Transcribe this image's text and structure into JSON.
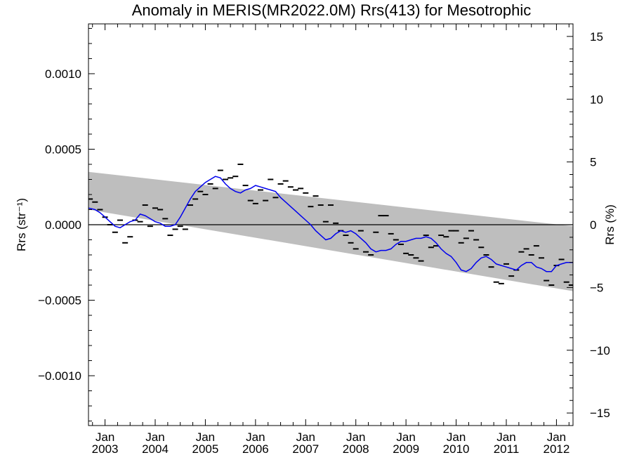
{
  "chart_data": {
    "type": "line",
    "title": "Anomaly in MERIS(MR2022.0M) Rrs(413) for Mesotrophic",
    "ylabel_left": "Rrs (str⁻¹)",
    "ylabel_right": "Rrs (%)",
    "xlim": [
      2002.67,
      2012.33
    ],
    "ylim_left": [
      -0.00133,
      0.00133
    ],
    "ylim_right": [
      -16,
      16
    ],
    "y_ticks_left": [
      {
        "v": 0.001,
        "label": "0.0010"
      },
      {
        "v": 0.0005,
        "label": "0.0005"
      },
      {
        "v": 0.0,
        "label": "0.0000"
      },
      {
        "v": -0.0005,
        "label": "−0.0005"
      },
      {
        "v": -0.001,
        "label": "−0.0010"
      }
    ],
    "y_ticks_right": [
      {
        "v": 15,
        "label": "15"
      },
      {
        "v": 10,
        "label": "10"
      },
      {
        "v": 5,
        "label": "5"
      },
      {
        "v": 0,
        "label": "0"
      },
      {
        "v": -5,
        "label": "−5"
      },
      {
        "v": -10,
        "label": "−10"
      },
      {
        "v": -15,
        "label": "−15"
      }
    ],
    "x_ticks": [
      {
        "x": 2003.0,
        "label": "Jan",
        "year": "2003"
      },
      {
        "x": 2004.0,
        "label": "Jan",
        "year": "2004"
      },
      {
        "x": 2005.0,
        "label": "Jan",
        "year": "2005"
      },
      {
        "x": 2006.0,
        "label": "Jan",
        "year": "2006"
      },
      {
        "x": 2007.0,
        "label": "Jan",
        "year": "2007"
      },
      {
        "x": 2008.0,
        "label": "Jan",
        "year": "2008"
      },
      {
        "x": 2009.0,
        "label": "Jan",
        "year": "2009"
      },
      {
        "x": 2010.0,
        "label": "Jan",
        "year": "2010"
      },
      {
        "x": 2011.0,
        "label": "Jan",
        "year": "2011"
      },
      {
        "x": 2012.0,
        "label": "Jan",
        "year": "2012"
      }
    ],
    "trend_band": {
      "x": [
        2002.67,
        2012.33
      ],
      "upper": [
        0.00035,
        -1e-05
      ],
      "lower": [
        0.0001,
        -0.00044
      ]
    },
    "zero_line": 0,
    "monthly_anomalies": {
      "x": [
        2002.7,
        2002.8,
        2002.9,
        2003.0,
        2003.1,
        2003.2,
        2003.3,
        2003.4,
        2003.5,
        2003.6,
        2003.7,
        2003.8,
        2003.9,
        2004.0,
        2004.1,
        2004.2,
        2004.3,
        2004.4,
        2004.5,
        2004.6,
        2004.7,
        2004.8,
        2004.9,
        2005.0,
        2005.1,
        2005.2,
        2005.3,
        2005.4,
        2005.5,
        2005.6,
        2005.7,
        2005.8,
        2005.9,
        2006.0,
        2006.1,
        2006.2,
        2006.3,
        2006.4,
        2006.5,
        2006.6,
        2006.7,
        2006.8,
        2006.9,
        2007.0,
        2007.1,
        2007.2,
        2007.3,
        2007.4,
        2007.5,
        2007.6,
        2007.7,
        2007.8,
        2007.9,
        2008.0,
        2008.1,
        2008.2,
        2008.3,
        2008.4,
        2008.5,
        2008.6,
        2008.7,
        2008.8,
        2008.9,
        2009.0,
        2009.1,
        2009.2,
        2009.3,
        2009.4,
        2009.5,
        2009.6,
        2009.7,
        2009.8,
        2009.9,
        2010.0,
        2010.1,
        2010.2,
        2010.3,
        2010.4,
        2010.5,
        2010.6,
        2010.7,
        2010.8,
        2010.9,
        2011.0,
        2011.1,
        2011.2,
        2011.3,
        2011.4,
        2011.5,
        2011.6,
        2011.7,
        2011.8,
        2011.9,
        2012.0,
        2012.1,
        2012.2,
        2012.3
      ],
      "y": [
        0.00017,
        0.00015,
        0.0001,
        5e-05,
        0.0,
        -5e-05,
        3e-05,
        -0.00012,
        -8e-05,
        3e-05,
        2e-05,
        0.00013,
        -1e-05,
        0.00011,
        0.0001,
        4e-05,
        -7e-05,
        -3e-05,
        -1e-05,
        -3e-05,
        0.00013,
        0.00017,
        0.00022,
        0.0002,
        0.00027,
        0.00024,
        0.00036,
        0.0003,
        0.00031,
        0.00032,
        0.0004,
        0.00026,
        0.00016,
        0.00014,
        0.00023,
        0.00016,
        0.0003,
        0.00018,
        0.00027,
        0.00029,
        0.00025,
        0.00023,
        0.00024,
        0.00021,
        0.00012,
        0.00019,
        0.00013,
        2e-05,
        0.00013,
        1e-05,
        -4e-05,
        -7e-05,
        -0.00012,
        -0.00016,
        -4e-05,
        -0.00018,
        -0.0002,
        -5e-05,
        6e-05,
        6e-05,
        -6e-05,
        -0.0001,
        -0.00013,
        -0.00019,
        -0.0002,
        -0.00022,
        -0.00024,
        -7e-05,
        -0.00015,
        -0.00014,
        -7e-05,
        -8e-05,
        -4e-05,
        -4e-05,
        -0.00012,
        -9e-05,
        -4e-05,
        -0.0001,
        -0.00015,
        -0.0002,
        -0.00028,
        -0.00038,
        -0.00039,
        -0.00026,
        -0.00034,
        -0.0003,
        -0.00018,
        -0.00016,
        -0.0002,
        -0.00014,
        -0.00022,
        -0.00037,
        -0.0004,
        -0.00027,
        -0.00023,
        -0.00038,
        -0.0004
      ]
    },
    "smoothed_series": {
      "color": "#0000ee",
      "x": [
        2002.67,
        2002.8,
        2002.9,
        2003.0,
        2003.1,
        2003.2,
        2003.3,
        2003.4,
        2003.5,
        2003.6,
        2003.7,
        2003.8,
        2003.9,
        2004.0,
        2004.1,
        2004.2,
        2004.3,
        2004.4,
        2004.5,
        2004.6,
        2004.7,
        2004.8,
        2004.9,
        2005.0,
        2005.1,
        2005.2,
        2005.3,
        2005.4,
        2005.5,
        2005.6,
        2005.7,
        2005.8,
        2005.9,
        2006.0,
        2006.1,
        2006.2,
        2006.3,
        2006.4,
        2006.5,
        2006.6,
        2006.7,
        2006.8,
        2006.9,
        2007.0,
        2007.1,
        2007.2,
        2007.3,
        2007.4,
        2007.5,
        2007.6,
        2007.7,
        2007.8,
        2007.9,
        2008.0,
        2008.1,
        2008.2,
        2008.3,
        2008.4,
        2008.5,
        2008.6,
        2008.7,
        2008.8,
        2008.9,
        2009.0,
        2009.1,
        2009.2,
        2009.3,
        2009.4,
        2009.5,
        2009.6,
        2009.7,
        2009.8,
        2009.9,
        2010.0,
        2010.1,
        2010.2,
        2010.3,
        2010.4,
        2010.5,
        2010.6,
        2010.7,
        2010.8,
        2010.9,
        2011.0,
        2011.1,
        2011.2,
        2011.3,
        2011.4,
        2011.5,
        2011.6,
        2011.7,
        2011.8,
        2011.9,
        2012.0,
        2012.1,
        2012.2,
        2012.33
      ],
      "y": [
        0.00011,
        0.0001,
        8e-05,
        5e-05,
        2e-05,
        -1e-05,
        -2e-05,
        0.0,
        2e-05,
        3e-05,
        7e-05,
        6e-05,
        4e-05,
        2e-05,
        1e-05,
        -1e-05,
        -1e-05,
        0.0,
        5e-05,
        0.00011,
        0.00017,
        0.00022,
        0.00025,
        0.00028,
        0.0003,
        0.00032,
        0.00031,
        0.00027,
        0.00024,
        0.00022,
        0.00021,
        0.00023,
        0.00024,
        0.00026,
        0.00025,
        0.00024,
        0.00023,
        0.00022,
        0.00018,
        0.00015,
        0.00012,
        9e-05,
        6e-05,
        3e-05,
        0.0,
        -4e-05,
        -7e-05,
        -0.0001,
        -9e-05,
        -6e-05,
        -4e-05,
        -5e-05,
        -4e-05,
        -6e-05,
        -9e-05,
        -0.00012,
        -0.00016,
        -0.00018,
        -0.00017,
        -0.00017,
        -0.00016,
        -0.00013,
        -0.00011,
        -0.00011,
        -0.0001,
        -9e-05,
        -9e-05,
        -8e-05,
        -9e-05,
        -0.00012,
        -0.00016,
        -0.00019,
        -0.00021,
        -0.00025,
        -0.0003,
        -0.00031,
        -0.00029,
        -0.00025,
        -0.00022,
        -0.00021,
        -0.00023,
        -0.00026,
        -0.00027,
        -0.00028,
        -0.00029,
        -0.0003,
        -0.00027,
        -0.00025,
        -0.00025,
        -0.00028,
        -0.00029,
        -0.00031,
        -0.00031,
        -0.00027,
        -0.00026,
        -0.00025,
        -0.00025
      ]
    }
  }
}
